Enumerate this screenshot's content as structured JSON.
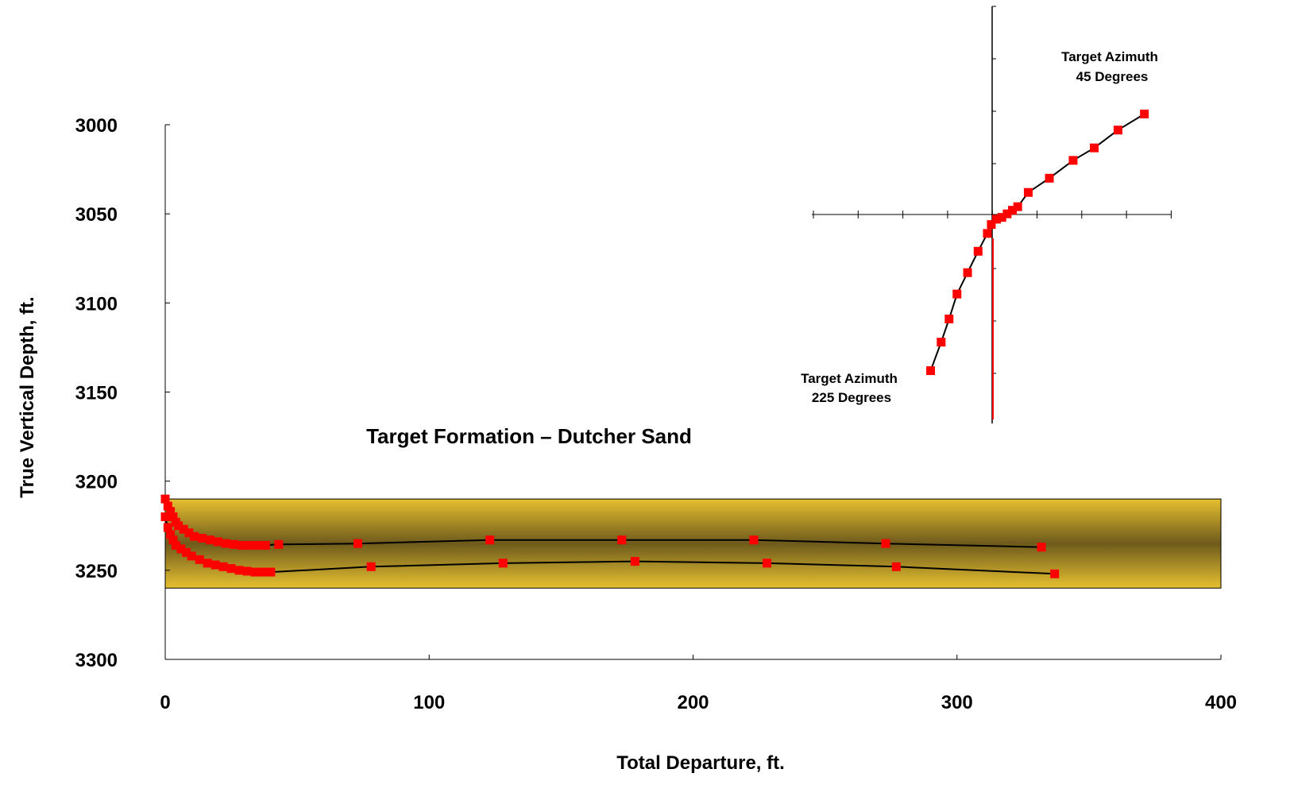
{
  "chart_data": {
    "type": "line",
    "xlabel": "Total Departure, ft.",
    "ylabel": "True Vertical Depth, ft.",
    "xlim": [
      0,
      400
    ],
    "ylim": [
      3000,
      3300
    ],
    "y_inverted": true,
    "xticks": [
      0,
      100,
      200,
      300,
      400
    ],
    "yticks": [
      3000,
      3050,
      3100,
      3150,
      3200,
      3250,
      3300
    ],
    "grid": false,
    "annotations": {
      "formation_label": "Target Formation – Dutcher Sand",
      "azimuth_45": [
        "Target Azimuth",
        "45 Degrees"
      ],
      "azimuth_225": [
        "Target Azimuth",
        "225 Degrees"
      ]
    },
    "formation_band": {
      "top": 3210,
      "bottom": 3260,
      "color": "#e6c030",
      "center_color": "#6e5a1c"
    },
    "series": [
      {
        "marker_color": "#ff0000",
        "x": [
          0,
          1,
          2,
          3,
          4,
          5,
          7,
          9,
          11,
          14,
          17,
          20,
          23,
          26,
          29,
          32,
          35,
          38,
          43,
          73,
          123,
          173,
          223,
          273,
          332
        ],
        "y": [
          3210,
          3214,
          3217,
          3220,
          3223,
          3225,
          3227,
          3229,
          3231,
          3232,
          3233,
          3234,
          3235,
          3235.5,
          3236,
          3236,
          3236,
          3236,
          3235.5,
          3235,
          3233,
          3233,
          3233,
          3235,
          3237
        ]
      },
      {
        "marker_color": "#ff0000",
        "x": [
          0,
          1,
          2,
          3,
          4,
          6,
          8,
          10,
          13,
          16,
          19,
          22,
          25,
          28,
          31,
          34,
          37,
          40,
          78,
          128,
          178,
          228,
          277,
          337
        ],
        "y": [
          3220,
          3226,
          3230,
          3233,
          3236,
          3238,
          3240,
          3242,
          3244,
          3246,
          3247,
          3248,
          3249,
          3250,
          3250.5,
          3251,
          3251,
          3251,
          3248,
          3246,
          3245,
          3246,
          3248,
          3252
        ]
      },
      {
        "marker_color": "#ff0000",
        "x": [
          290,
          294,
          297,
          300,
          304,
          308,
          311.5,
          313,
          315,
          317,
          319,
          321,
          323,
          327,
          335,
          344,
          352,
          361,
          371
        ],
        "y": [
          3138,
          3122,
          3109,
          3095,
          3083,
          3071,
          3061,
          3056,
          3053,
          3052,
          3050,
          3048,
          3046,
          3038,
          3030,
          3020,
          3013,
          3003,
          2994
        ]
      }
    ]
  }
}
